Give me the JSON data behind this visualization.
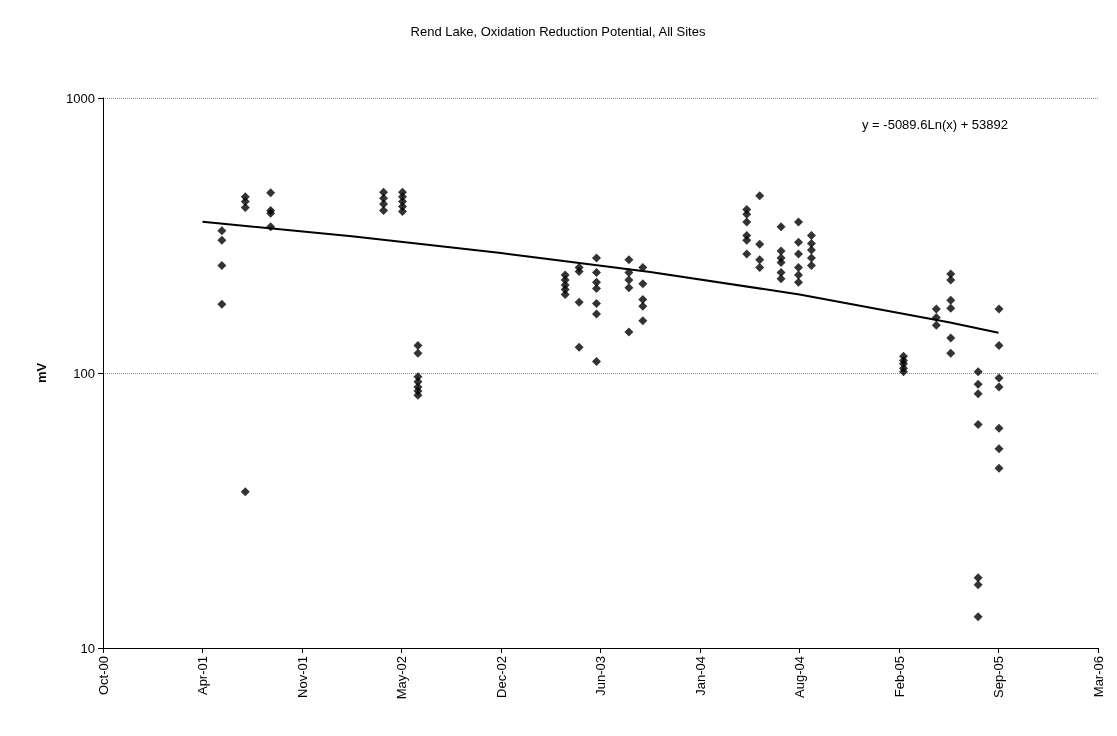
{
  "chart_data": {
    "type": "scatter",
    "title": "Rend Lake, Oxidation Reduction Potential, All Sites",
    "ylabel": "mV",
    "log": "y",
    "grid": "y",
    "marker": "diamond",
    "xlim": [
      "2000-10-01",
      "2006-03-24"
    ],
    "xticks": [
      {
        "value": "2000-10-01",
        "label": "Oct-00"
      },
      {
        "value": "2001-04-19",
        "label": "Apr-01"
      },
      {
        "value": "2001-11-05",
        "label": "Nov-01"
      },
      {
        "value": "2002-05-24",
        "label": "May-02"
      },
      {
        "value": "2002-12-10",
        "label": "Dec-02"
      },
      {
        "value": "2003-06-28",
        "label": "Jun-03"
      },
      {
        "value": "2004-01-14",
        "label": "Jan-04"
      },
      {
        "value": "2004-08-01",
        "label": "Aug-04"
      },
      {
        "value": "2005-02-17",
        "label": "Feb-05"
      },
      {
        "value": "2005-09-05",
        "label": "Sep-05"
      },
      {
        "value": "2006-03-24",
        "label": "Mar-06"
      }
    ],
    "ylim": [
      10,
      1000
    ],
    "yticks": [
      10,
      100,
      1000
    ],
    "annotations": [
      "y = -5089.6Ln(x) + 53892"
    ],
    "series": [
      {
        "color": "#000000",
        "x": [
          "2001-05-28",
          "2001-05-28",
          "2001-05-28",
          "2001-05-28",
          "2001-07-14",
          "2001-07-14",
          "2001-07-14",
          "2001-07-14",
          "2001-09-03",
          "2001-09-03",
          "2001-09-03",
          "2001-09-03",
          "2002-04-18",
          "2002-04-18",
          "2002-04-18",
          "2002-04-18",
          "2002-05-26",
          "2002-05-26",
          "2002-05-26",
          "2002-05-26",
          "2002-05-26",
          "2002-06-26",
          "2002-06-26",
          "2002-06-26",
          "2002-06-26",
          "2002-06-26",
          "2002-06-26",
          "2002-06-26",
          "2003-04-18",
          "2003-04-18",
          "2003-04-18",
          "2003-04-18",
          "2003-04-18",
          "2003-05-16",
          "2003-05-16",
          "2003-05-16",
          "2003-05-16",
          "2003-06-20",
          "2003-06-20",
          "2003-06-20",
          "2003-06-20",
          "2003-06-20",
          "2003-06-20",
          "2003-06-20",
          "2003-08-24",
          "2003-08-24",
          "2003-08-24",
          "2003-08-24",
          "2003-08-24",
          "2003-09-21",
          "2003-09-21",
          "2003-09-21",
          "2003-09-21",
          "2003-09-21",
          "2004-04-17",
          "2004-04-17",
          "2004-04-17",
          "2004-04-17",
          "2004-04-17",
          "2004-04-17",
          "2004-05-13",
          "2004-05-13",
          "2004-05-13",
          "2004-05-13",
          "2004-06-25",
          "2004-06-25",
          "2004-06-25",
          "2004-06-25",
          "2004-06-25",
          "2004-06-25",
          "2004-07-30",
          "2004-07-30",
          "2004-07-30",
          "2004-07-30",
          "2004-07-30",
          "2004-07-30",
          "2004-08-25",
          "2004-08-25",
          "2004-08-25",
          "2004-08-25",
          "2004-08-25",
          "2005-02-26",
          "2005-02-26",
          "2005-02-26",
          "2005-02-26",
          "2005-02-26",
          "2005-05-03",
          "2005-05-03",
          "2005-05-03",
          "2005-06-01",
          "2005-06-01",
          "2005-06-01",
          "2005-06-01",
          "2005-06-01",
          "2005-06-01",
          "2005-07-26",
          "2005-07-26",
          "2005-07-26",
          "2005-07-26",
          "2005-07-26",
          "2005-07-26",
          "2005-07-26",
          "2005-09-06",
          "2005-09-06",
          "2005-09-06",
          "2005-09-06",
          "2005-09-06",
          "2005-09-06",
          "2005-09-06"
        ],
        "values": [
          329,
          304,
          246,
          178,
          437,
          420,
          400,
          37,
          452,
          390,
          381,
          340,
          454,
          432,
          412,
          390,
          454,
          437,
          420,
          403,
          387,
          126,
          118,
          97,
          93,
          89,
          86,
          83,
          227,
          218,
          209,
          201,
          193,
          242,
          234,
          181,
          124,
          262,
          232,
          214,
          203,
          179,
          164,
          110,
          258,
          232,
          218,
          204,
          141,
          242,
          211,
          185,
          175,
          155,
          393,
          378,
          354,
          316,
          304,
          271,
          441,
          294,
          258,
          242,
          340,
          278,
          262,
          252,
          232,
          220,
          354,
          299,
          271,
          242,
          227,
          214,
          316,
          296,
          280,
          262,
          246,
          115,
          111,
          108,
          104,
          101,
          171,
          159,
          149,
          229,
          218,
          184,
          172,
          134,
          118,
          101,
          91,
          84,
          65,
          18,
          17,
          13,
          171,
          126,
          96,
          89,
          63,
          53,
          45
        ]
      },
      {
        "type": "line",
        "color": "#000000",
        "marker": "none",
        "x": [
          "2001-04-19",
          "2002-02-13",
          "2002-12-10",
          "2003-10-06",
          "2004-08-01",
          "2005-05-28",
          "2005-09-05"
        ],
        "values": [
          355,
          314,
          273,
          233,
          193,
          153,
          140
        ]
      }
    ]
  }
}
